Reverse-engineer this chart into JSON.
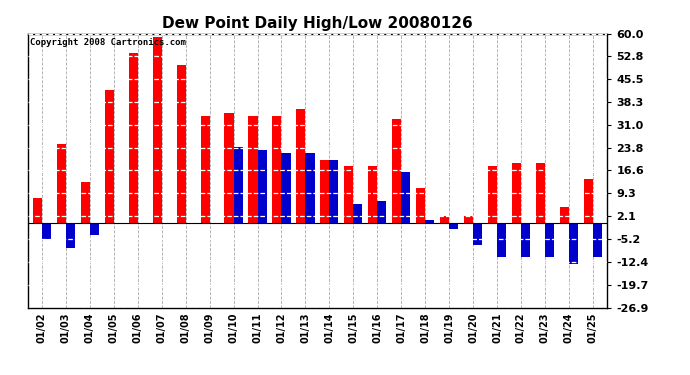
{
  "title": "Dew Point Daily High/Low 20080126",
  "copyright": "Copyright 2008 Cartronics.com",
  "dates": [
    "01/02",
    "01/03",
    "01/04",
    "01/05",
    "01/06",
    "01/07",
    "01/08",
    "01/09",
    "01/10",
    "01/11",
    "01/12",
    "01/13",
    "01/14",
    "01/15",
    "01/16",
    "01/17",
    "01/18",
    "01/19",
    "01/20",
    "01/21",
    "01/22",
    "01/23",
    "01/24",
    "01/25"
  ],
  "highs": [
    8.0,
    25.0,
    13.0,
    42.0,
    54.0,
    59.0,
    50.0,
    34.0,
    35.0,
    34.0,
    34.0,
    36.0,
    20.0,
    18.0,
    18.0,
    33.0,
    11.0,
    2.0,
    2.0,
    18.0,
    19.0,
    19.0,
    5.0,
    14.0
  ],
  "lows": [
    -5.0,
    -8.0,
    -4.0,
    0.0,
    0.0,
    0.0,
    0.0,
    0.0,
    24.0,
    23.0,
    22.0,
    22.0,
    20.0,
    6.0,
    7.0,
    16.0,
    1.0,
    -2.0,
    -7.0,
    -11.0,
    -11.0,
    -11.0,
    -13.0,
    -11.0
  ],
  "high_color": "#ff0000",
  "low_color": "#0000cc",
  "background_color": "#ffffff",
  "plot_bg_color": "#ffffff",
  "yticks": [
    60.0,
    52.8,
    45.5,
    38.3,
    31.0,
    23.8,
    16.6,
    9.3,
    2.1,
    -5.2,
    -12.4,
    -19.7,
    -26.9
  ],
  "ymin": -26.9,
  "ymax": 60.0,
  "bar_width": 0.38,
  "figwidth": 6.9,
  "figheight": 3.75,
  "dpi": 100
}
